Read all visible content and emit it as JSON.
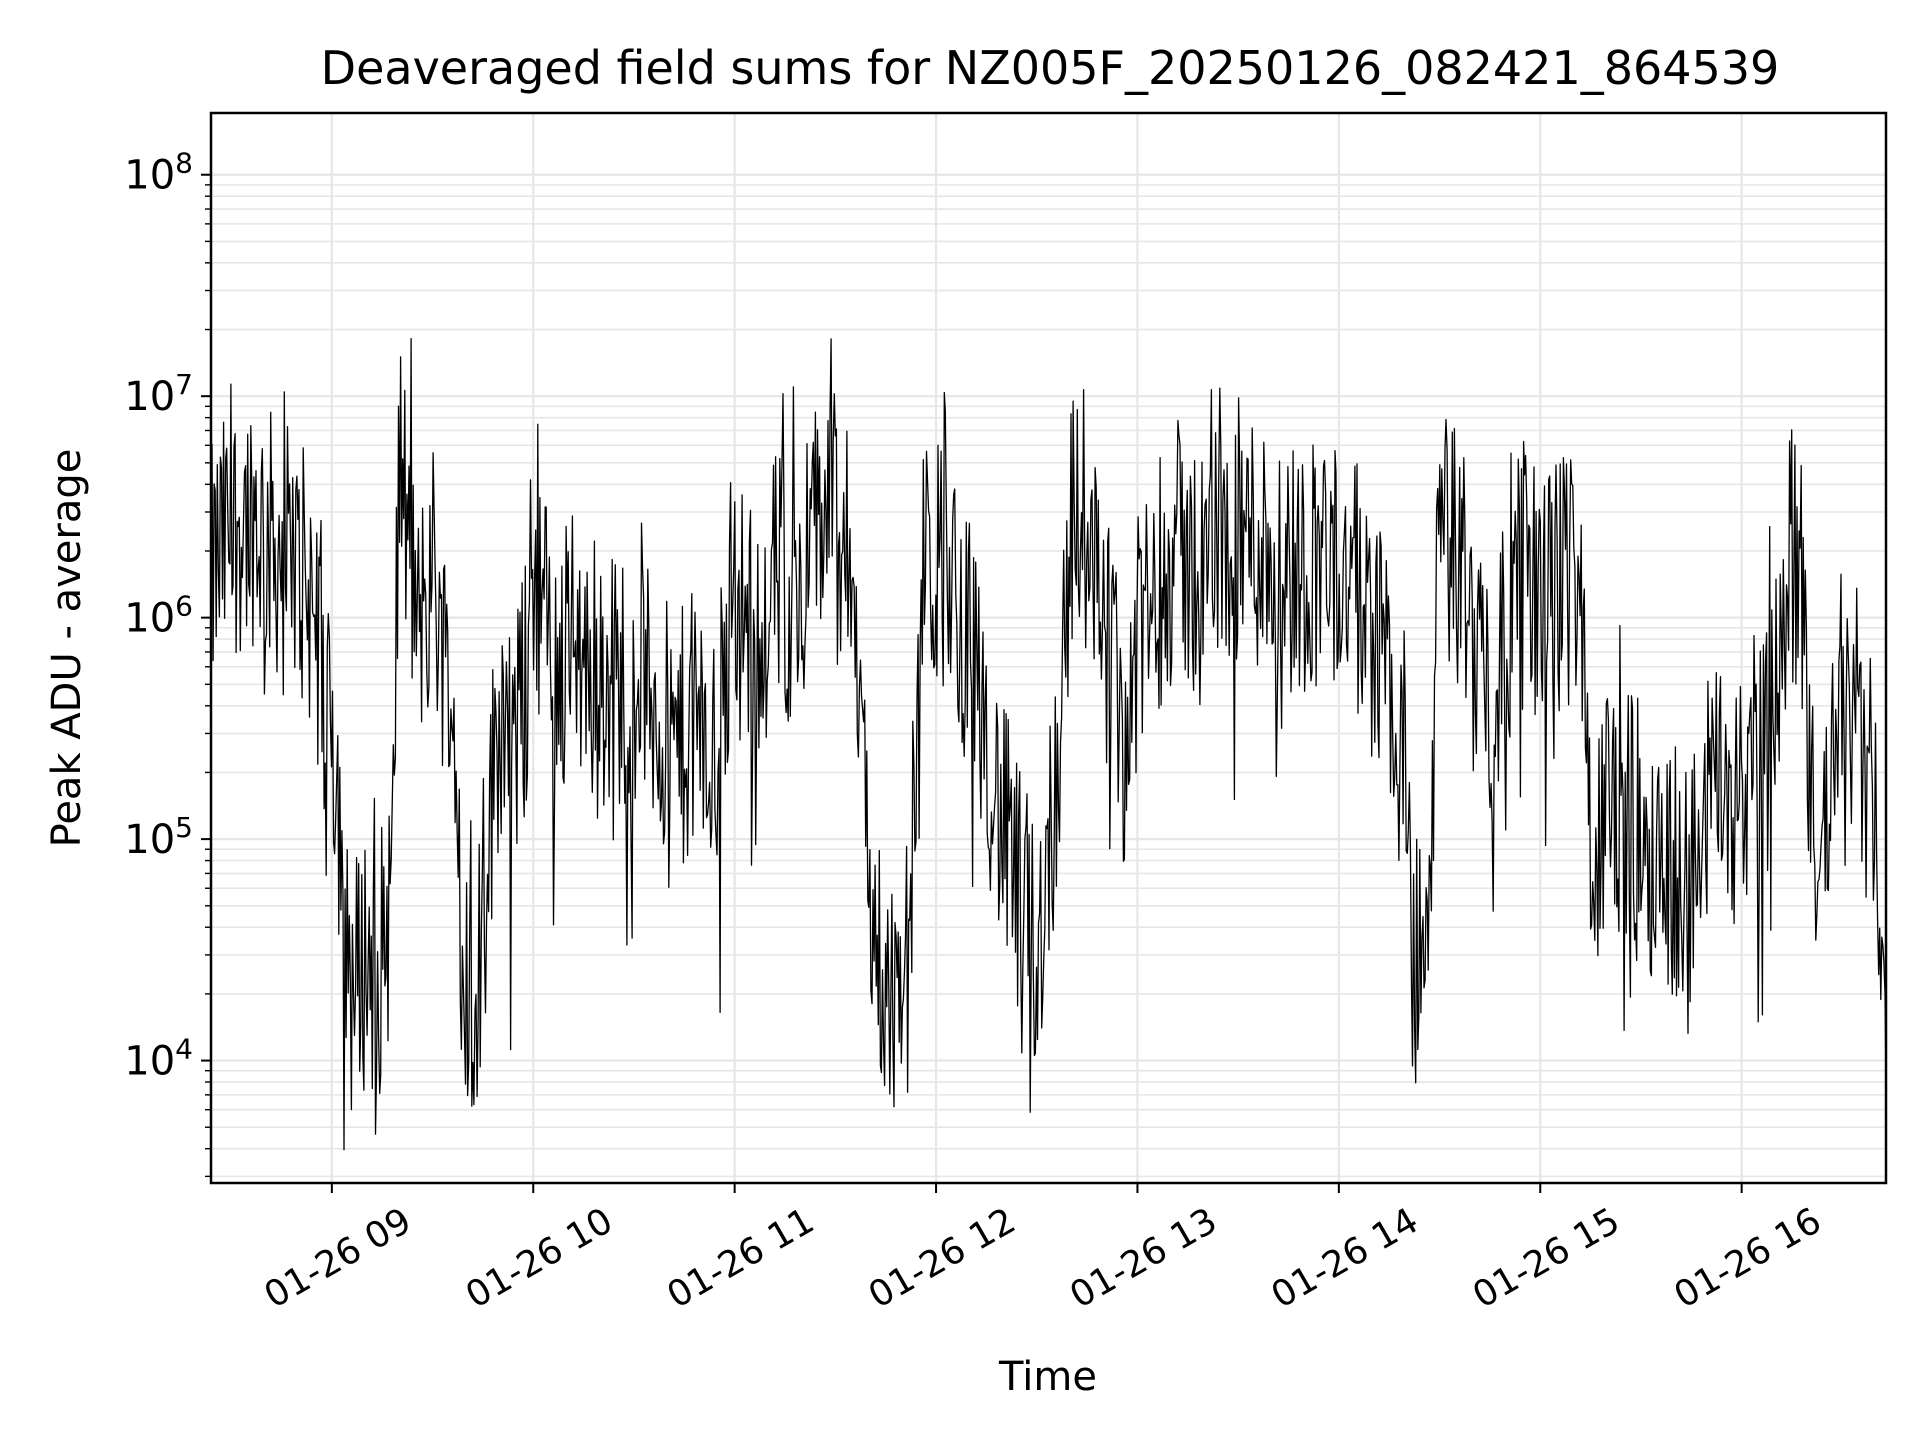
{
  "chart_data": {
    "type": "line",
    "title": "Deaveraged field sums for NZ005F_20250126_082421_864539",
    "xlabel": "Time",
    "ylabel": "Peak ADU - average",
    "yscale": "log",
    "ylim": [
      2800,
      190000000
    ],
    "xlim": [
      "2025-01-26 08:24",
      "2025-01-26 16:43"
    ],
    "grid": true,
    "line_color": "#000000",
    "grid_color": "#e6e6e6",
    "x_ticks": [
      {
        "t": "2025-01-26 09:00",
        "label": "01-26 09"
      },
      {
        "t": "2025-01-26 10:00",
        "label": "01-26 10"
      },
      {
        "t": "2025-01-26 11:00",
        "label": "01-26 11"
      },
      {
        "t": "2025-01-26 12:00",
        "label": "01-26 12"
      },
      {
        "t": "2025-01-26 13:00",
        "label": "01-26 13"
      },
      {
        "t": "2025-01-26 14:00",
        "label": "01-26 14"
      },
      {
        "t": "2025-01-26 15:00",
        "label": "01-26 15"
      },
      {
        "t": "2025-01-26 16:00",
        "label": "01-26 16"
      }
    ],
    "y_ticks": [
      {
        "v": 10000,
        "base": "10",
        "exp": "4"
      },
      {
        "v": 100000,
        "base": "10",
        "exp": "5"
      },
      {
        "v": 1000000,
        "base": "10",
        "exp": "6"
      },
      {
        "v": 10000000,
        "base": "10",
        "exp": "7"
      },
      {
        "v": 100000000,
        "base": "10",
        "exp": "8"
      }
    ],
    "series": [
      {
        "x": [
          "2025-01-26 08:24",
          "2025-01-26 08:30",
          "2025-01-26 08:36",
          "2025-01-26 08:42",
          "2025-01-26 08:48",
          "2025-01-26 08:54",
          "2025-01-26 09:00",
          "2025-01-26 09:03",
          "2025-01-26 09:06",
          "2025-01-26 09:10",
          "2025-01-26 09:14",
          "2025-01-26 09:18",
          "2025-01-26 09:20",
          "2025-01-26 09:23",
          "2025-01-26 09:26",
          "2025-01-26 09:30",
          "2025-01-26 09:34",
          "2025-01-26 09:38",
          "2025-01-26 09:40",
          "2025-01-26 09:43",
          "2025-01-26 09:46",
          "2025-01-26 09:50",
          "2025-01-26 09:54",
          "2025-01-26 09:58",
          "2025-01-26 10:00",
          "2025-01-26 10:06",
          "2025-01-26 10:12",
          "2025-01-26 10:18",
          "2025-01-26 10:24",
          "2025-01-26 10:30",
          "2025-01-26 10:36",
          "2025-01-26 10:42",
          "2025-01-26 10:48",
          "2025-01-26 10:54",
          "2025-01-26 11:00",
          "2025-01-26 11:06",
          "2025-01-26 11:12",
          "2025-01-26 11:18",
          "2025-01-26 11:24",
          "2025-01-26 11:28",
          "2025-01-26 11:32",
          "2025-01-26 11:36",
          "2025-01-26 11:40",
          "2025-01-26 11:44",
          "2025-01-26 11:48",
          "2025-01-26 11:52",
          "2025-01-26 11:56",
          "2025-01-26 12:00",
          "2025-01-26 12:06",
          "2025-01-26 12:12",
          "2025-01-26 12:18",
          "2025-01-26 12:24",
          "2025-01-26 12:30",
          "2025-01-26 12:36",
          "2025-01-26 12:40",
          "2025-01-26 12:44",
          "2025-01-26 12:48",
          "2025-01-26 12:52",
          "2025-01-26 12:56",
          "2025-01-26 13:00",
          "2025-01-26 13:06",
          "2025-01-26 13:12",
          "2025-01-26 13:18",
          "2025-01-26 13:24",
          "2025-01-26 13:30",
          "2025-01-26 13:36",
          "2025-01-26 13:42",
          "2025-01-26 13:48",
          "2025-01-26 13:54",
          "2025-01-26 14:00",
          "2025-01-26 14:06",
          "2025-01-26 14:12",
          "2025-01-26 14:18",
          "2025-01-26 14:22",
          "2025-01-26 14:26",
          "2025-01-26 14:30",
          "2025-01-26 14:34",
          "2025-01-26 14:38",
          "2025-01-26 14:42",
          "2025-01-26 14:46",
          "2025-01-26 14:50",
          "2025-01-26 14:56",
          "2025-01-26 15:02",
          "2025-01-26 15:08",
          "2025-01-26 15:12",
          "2025-01-26 15:16",
          "2025-01-26 15:20",
          "2025-01-26 15:26",
          "2025-01-26 15:32",
          "2025-01-26 15:38",
          "2025-01-26 15:44",
          "2025-01-26 15:50",
          "2025-01-26 15:56",
          "2025-01-26 16:02",
          "2025-01-26 16:08",
          "2025-01-26 16:14",
          "2025-01-26 16:18",
          "2025-01-26 16:22",
          "2025-01-26 16:26",
          "2025-01-26 16:30",
          "2025-01-26 16:34",
          "2025-01-26 16:38",
          "2025-01-26 16:43"
        ],
        "y": [
          1500000,
          2500000,
          3000000,
          2200000,
          1800000,
          1200000,
          400000,
          90000,
          20000,
          30000,
          25000,
          60000,
          6000000,
          2000000,
          800000,
          1800000,
          600000,
          150000,
          25000,
          20000,
          80000,
          400000,
          250000,
          500000,
          2000000,
          600000,
          800000,
          500000,
          500000,
          600000,
          400000,
          250000,
          350000,
          200000,
          1200000,
          800000,
          1500000,
          1200000,
          2500000,
          3500000,
          2000000,
          1500000,
          50000,
          25000,
          20000,
          30000,
          1500000,
          1800000,
          1200000,
          600000,
          150000,
          60000,
          30000,
          200000,
          2500000,
          3000000,
          1800000,
          600000,
          300000,
          700000,
          1500000,
          2000000,
          1500000,
          2200000,
          2500000,
          2200000,
          1800000,
          1600000,
          2000000,
          1800000,
          1200000,
          800000,
          300000,
          30000,
          20000,
          2500000,
          2000000,
          1500000,
          800000,
          300000,
          1200000,
          1500000,
          1200000,
          1500000,
          2000000,
          50000,
          150000,
          120000,
          100000,
          80000,
          60000,
          150000,
          150000,
          200000,
          250000,
          2000000,
          1200000,
          60000,
          150000,
          250000,
          400000,
          200000,
          20000
        ]
      }
    ]
  }
}
